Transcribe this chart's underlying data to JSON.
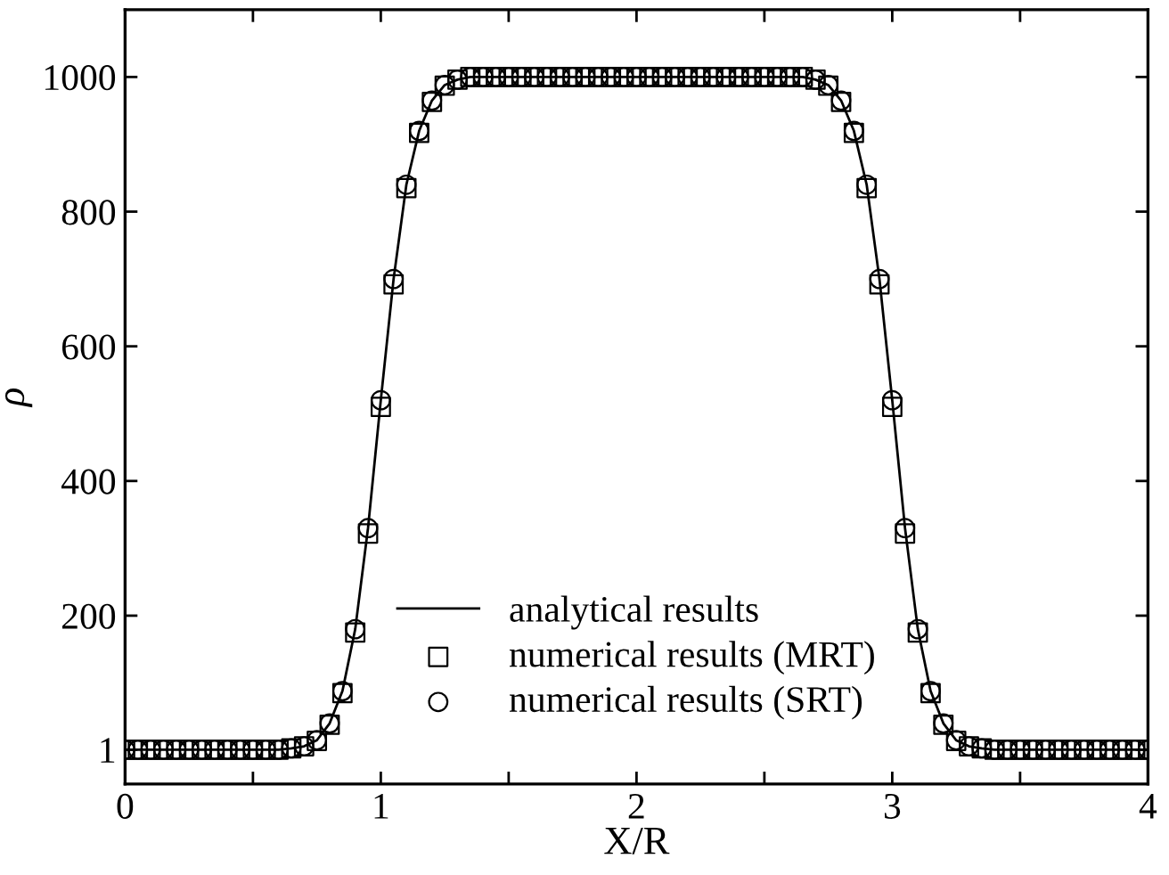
{
  "chart_data": {
    "type": "line",
    "xlabel": "X/R",
    "ylabel": "ρ",
    "x": [
      0,
      0.05,
      0.1,
      0.15,
      0.2,
      0.25,
      0.3,
      0.35,
      0.4,
      0.45,
      0.5,
      0.55,
      0.6,
      0.65,
      0.7,
      0.75,
      0.8,
      0.85,
      0.9,
      0.95,
      1,
      1.05,
      1.1,
      1.15,
      1.2,
      1.25,
      1.3,
      1.35,
      1.4,
      1.45,
      1.5,
      1.55,
      1.6,
      1.65,
      1.7,
      1.75,
      1.8,
      1.85,
      1.9,
      1.95,
      2,
      2.05,
      2.1,
      2.15,
      2.2,
      2.25,
      2.3,
      2.35,
      2.4,
      2.45,
      2.5,
      2.55,
      2.6,
      2.65,
      2.7,
      2.75,
      2.8,
      2.85,
      2.9,
      2.95,
      3,
      3.05,
      3.1,
      3.15,
      3.2,
      3.25,
      3.3,
      3.35,
      3.4,
      3.45,
      3.5,
      3.55,
      3.6,
      3.65,
      3.7,
      3.75,
      3.8,
      3.85,
      3.9,
      3.95,
      4
    ],
    "series": [
      {
        "name": "analytical results",
        "color": "#000000",
        "marker": "none",
        "line_style": "solid",
        "values": [
          1,
          1,
          1,
          1,
          1,
          1,
          1,
          1,
          1,
          1,
          1,
          1,
          1,
          3,
          6,
          15,
          40,
          88,
          180,
          330,
          520,
          700,
          840,
          920,
          965,
          988,
          996,
          1000,
          1000,
          1000,
          1000,
          1000,
          1000,
          1000,
          1000,
          1000,
          1000,
          1000,
          1000,
          1000,
          1000,
          1000,
          1000,
          1000,
          1000,
          1000,
          1000,
          1000,
          1000,
          1000,
          1000,
          1000,
          1000,
          1000,
          996,
          988,
          965,
          920,
          840,
          700,
          520,
          330,
          180,
          88,
          40,
          15,
          6,
          3,
          1,
          1,
          1,
          1,
          1,
          1,
          1,
          1,
          1,
          1,
          1,
          1,
          1
        ]
      },
      {
        "name": "numerical results (MRT)",
        "type": "scatter",
        "color": "#000000",
        "marker": "square",
        "values": [
          1,
          1,
          1,
          1,
          1,
          1,
          1,
          1,
          1,
          1,
          1,
          1,
          1,
          3,
          6,
          14,
          38,
          85,
          175,
          322,
          510,
          692,
          835,
          917,
          963,
          987,
          996,
          1000,
          1000,
          1000,
          1000,
          1000,
          1000,
          1000,
          1000,
          1000,
          1000,
          1000,
          1000,
          1000,
          1000,
          1000,
          1000,
          1000,
          1000,
          1000,
          1000,
          1000,
          1000,
          1000,
          1000,
          1000,
          1000,
          1000,
          996,
          987,
          963,
          917,
          835,
          692,
          510,
          322,
          175,
          85,
          38,
          14,
          6,
          3,
          1,
          1,
          1,
          1,
          1,
          1,
          1,
          1,
          1,
          1,
          1,
          1,
          1
        ]
      },
      {
        "name": "numerical results (SRT)",
        "type": "scatter",
        "color": "#000000",
        "marker": "circle",
        "values": [
          1,
          1,
          1,
          1,
          1,
          1,
          1,
          1,
          1,
          1,
          1,
          1,
          1,
          3,
          6,
          15,
          40,
          88,
          180,
          330,
          520,
          700,
          840,
          920,
          965,
          988,
          996,
          1000,
          1000,
          1000,
          1000,
          1000,
          1000,
          1000,
          1000,
          1000,
          1000,
          1000,
          1000,
          1000,
          1000,
          1000,
          1000,
          1000,
          1000,
          1000,
          1000,
          1000,
          1000,
          1000,
          1000,
          1000,
          1000,
          1000,
          996,
          988,
          965,
          920,
          840,
          700,
          520,
          330,
          180,
          88,
          40,
          15,
          6,
          3,
          1,
          1,
          1,
          1,
          1,
          1,
          1,
          1,
          1,
          1,
          1,
          1,
          1
        ]
      }
    ],
    "xlim": [
      0,
      4
    ],
    "xticks": [
      0,
      {
        "value": 0.5,
        "label": null
      },
      1,
      {
        "value": 1.5,
        "label": null
      },
      2,
      {
        "value": 2.5,
        "label": null
      },
      3,
      {
        "value": 3.5,
        "label": null
      },
      4
    ],
    "ylim": [
      -50,
      1100
    ],
    "yticks": [
      1,
      200,
      400,
      600,
      800,
      1000
    ],
    "grid": false,
    "legend": "bottom"
  }
}
